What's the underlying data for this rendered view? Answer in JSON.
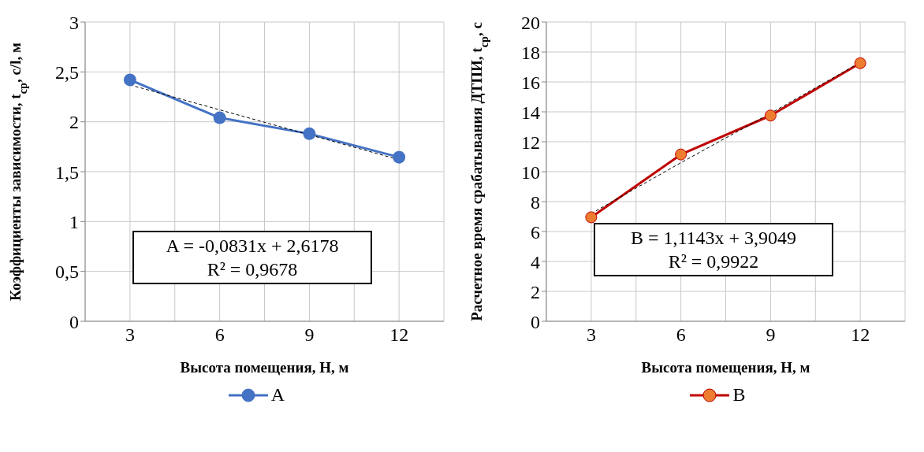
{
  "chart_data": [
    {
      "type": "line",
      "categories": [
        "3",
        "6",
        "9",
        "12"
      ],
      "xlabel": "Высота помещения, H, м",
      "ylabel": "Коэффициенты зависимости, t$_{cp}$, с/l, м",
      "ylim": [
        0,
        3
      ],
      "yticks": [
        0,
        {
          "value": 0.5,
          "label": "0,5"
        },
        1,
        {
          "value": 1.5,
          "label": "1,5"
        },
        2,
        {
          "value": 2.5,
          "label": "2,5"
        },
        3
      ],
      "grid": true,
      "legend": "bottom",
      "marker": "circle",
      "series": [
        {
          "name": "A",
          "color": "#4472c4",
          "values": [
            2.42,
            2.04,
            1.88,
            1.645
          ]
        },
        {
          "color": "#000000",
          "values": [
            2.37,
            2.12,
            1.87,
            1.62
          ],
          "line_style": "dashed",
          "marker": "none"
        }
      ],
      "annotations": [
        "A = -0,0831x + 2,6178",
        "R² = 0,9678"
      ]
    },
    {
      "type": "line",
      "categories": [
        "3",
        "6",
        "9",
        "12"
      ],
      "xlabel": "Высота помещения, H, м",
      "ylabel": "Расчетное время срабатывания ДТПИ, t$_{cp}$, с",
      "ylim": [
        0,
        20
      ],
      "yticks": [
        0,
        2,
        4,
        6,
        8,
        10,
        12,
        14,
        16,
        18,
        20
      ],
      "grid": true,
      "legend": "bottom",
      "marker": "circle",
      "series": [
        {
          "name": "B",
          "color": "#c00000",
          "values": [
            6.95,
            11.15,
            13.75,
            17.25
          ]
        },
        {
          "color": "#000000",
          "values": [
            7.2,
            10.6,
            13.9,
            17.3
          ],
          "line_style": "dashed",
          "marker": "none"
        }
      ],
      "annotations": [
        "B = 1,1143x + 3,9049",
        "R² = 0,9922"
      ]
    }
  ]
}
